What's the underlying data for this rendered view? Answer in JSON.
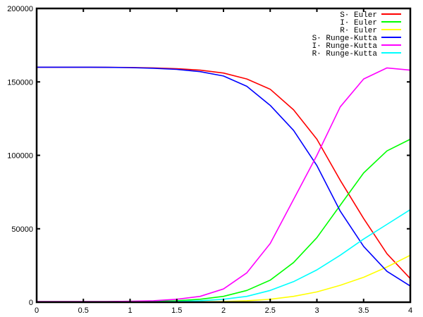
{
  "chart_data": {
    "type": "line",
    "title": "",
    "xlabel": "",
    "ylabel": "",
    "xlim": [
      0,
      4
    ],
    "ylim": [
      0,
      200000
    ],
    "grid": false,
    "legend_position": "top-right",
    "x_ticks": [
      "0",
      "0.5",
      "1",
      "1.5",
      "2",
      "2.5",
      "3",
      "3.5",
      "4"
    ],
    "y_ticks": [
      "0",
      "50000",
      "100000",
      "150000",
      "200000"
    ],
    "x": [
      0,
      0.25,
      0.5,
      0.75,
      1,
      1.25,
      1.5,
      1.75,
      2,
      2.25,
      2.5,
      2.75,
      3,
      3.25,
      3.5,
      3.75,
      4
    ],
    "series": [
      {
        "name": "S· Euler",
        "color": "#ff0000",
        "values": [
          160000,
          160000,
          160000,
          159900,
          159800,
          159500,
          159000,
          158000,
          156000,
          152000,
          145000,
          131000,
          111000,
          83000,
          57000,
          33000,
          16000
        ]
      },
      {
        "name": "I· Euler",
        "color": "#00ff00",
        "values": [
          500,
          500,
          500,
          500,
          600,
          800,
          1000,
          2000,
          4000,
          8000,
          15000,
          27000,
          44000,
          66000,
          88000,
          103000,
          111000
        ]
      },
      {
        "name": "R· Euler",
        "color": "#ffff00",
        "values": [
          0,
          0,
          0,
          0,
          0,
          100,
          200,
          300,
          500,
          1000,
          2000,
          4000,
          7000,
          11500,
          17000,
          24000,
          32000
        ]
      },
      {
        "name": "S· Runge-Kutta",
        "color": "#0000ff",
        "values": [
          160000,
          160000,
          160000,
          159900,
          159700,
          159300,
          158500,
          157000,
          154000,
          147000,
          134000,
          117000,
          93000,
          62000,
          38000,
          21000,
          11000
        ]
      },
      {
        "name": "I· Runge-Kutta",
        "color": "#ff00ff",
        "values": [
          500,
          500,
          500,
          500,
          600,
          1000,
          2000,
          4000,
          9000,
          20000,
          40000,
          70000,
          100000,
          133000,
          152000,
          159500,
          158000
        ]
      },
      {
        "name": "R· Runge-Kutta",
        "color": "#00ffff",
        "values": [
          0,
          0,
          0,
          0,
          0,
          200,
          500,
          1000,
          2000,
          4000,
          8000,
          14000,
          22000,
          32000,
          43000,
          53000,
          63000
        ]
      }
    ]
  }
}
